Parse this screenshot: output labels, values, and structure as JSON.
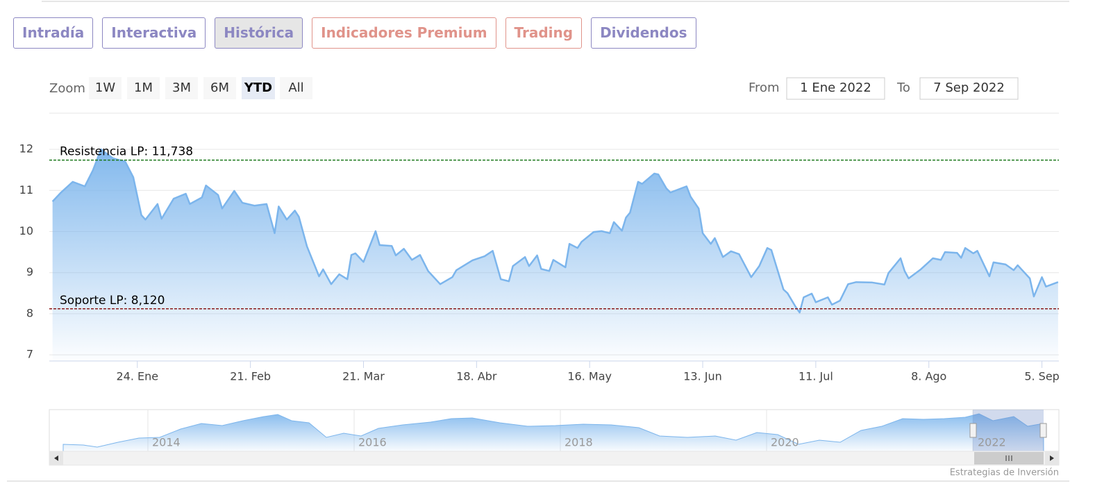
{
  "tabs": [
    "Intradía",
    "Interactiva",
    "Histórica",
    "Indicadores Premium",
    "Trading",
    "Dividendos"
  ],
  "zoom": {
    "label": "Zoom",
    "buttons": [
      "1W",
      "1M",
      "3M",
      "6M",
      "YTD",
      "All"
    ]
  },
  "range": {
    "from_label": "From",
    "from": "1 Ene 2022",
    "to_label": "To",
    "to": "7 Sep 2022"
  },
  "chart_data": {
    "type": "area",
    "color": "#7cb5ec",
    "x": [
      3,
      5,
      8,
      11,
      13,
      15,
      18,
      21,
      23,
      25,
      26,
      29,
      30,
      33,
      36,
      37,
      40,
      41,
      44,
      45,
      48,
      50,
      53,
      56,
      58,
      59,
      61,
      63,
      64,
      66,
      69,
      70,
      72,
      74,
      76,
      77,
      78,
      80,
      83,
      84,
      87,
      88,
      90,
      92,
      94,
      96,
      99,
      102,
      103,
      107,
      110,
      112,
      114,
      116,
      117,
      120,
      121,
      123,
      124,
      126,
      127,
      130,
      131,
      133,
      134,
      137,
      139,
      141,
      142,
      144,
      145,
      146,
      148,
      149,
      152,
      153,
      155,
      156,
      160,
      161,
      163,
      164,
      166,
      167,
      169,
      171,
      173,
      176,
      178,
      180,
      181,
      184,
      185,
      187,
      188,
      189,
      191,
      192,
      195,
      196,
      198,
      200,
      202,
      206,
      209,
      210,
      213,
      214,
      215,
      218,
      221,
      223,
      224,
      227,
      228,
      229,
      231,
      232,
      235,
      236,
      239,
      241,
      242,
      245,
      246,
      248,
      249,
      252
    ],
    "values": [
      10.73,
      10.94,
      11.21,
      11.1,
      11.49,
      12.0,
      11.78,
      11.7,
      11.32,
      10.4,
      10.29,
      10.67,
      10.31,
      10.8,
      10.92,
      10.67,
      10.83,
      11.12,
      10.89,
      10.56,
      10.99,
      10.7,
      10.63,
      10.67,
      9.96,
      10.61,
      10.29,
      10.51,
      10.36,
      9.64,
      8.91,
      9.08,
      8.72,
      8.96,
      8.84,
      9.43,
      9.47,
      9.26,
      10.01,
      9.67,
      9.65,
      9.42,
      9.58,
      9.31,
      9.43,
      9.04,
      8.72,
      8.89,
      9.06,
      9.3,
      9.4,
      9.53,
      8.84,
      8.79,
      9.16,
      9.38,
      9.16,
      9.42,
      9.09,
      9.04,
      9.31,
      9.13,
      9.7,
      9.6,
      9.75,
      9.99,
      10.01,
      9.96,
      10.23,
      10.02,
      10.34,
      10.46,
      11.21,
      11.16,
      11.41,
      11.39,
      11.05,
      10.95,
      11.1,
      10.85,
      10.56,
      9.96,
      9.7,
      9.84,
      9.38,
      9.52,
      9.45,
      8.89,
      9.16,
      9.6,
      9.55,
      8.59,
      8.5,
      8.17,
      8.03,
      8.4,
      8.49,
      8.28,
      8.4,
      8.22,
      8.32,
      8.72,
      8.77,
      8.76,
      8.71,
      8.99,
      9.35,
      9.04,
      8.86,
      9.08,
      9.35,
      9.31,
      9.5,
      9.48,
      9.36,
      9.6,
      9.47,
      9.53,
      8.91,
      9.25,
      9.2,
      9.06,
      9.18,
      8.86,
      8.42,
      8.89,
      8.66,
      8.77
    ],
    "xlim": [
      2.2,
      252.2
    ],
    "xticks": [
      {
        "value": 24,
        "label": "24. Ene"
      },
      {
        "value": 52,
        "label": "21. Feb"
      },
      {
        "value": 80,
        "label": "21. Mar"
      },
      {
        "value": 108,
        "label": "18. Abr"
      },
      {
        "value": 136,
        "label": "16. May"
      },
      {
        "value": 164,
        "label": "13. Jun"
      },
      {
        "value": 192,
        "label": "11. Jul"
      },
      {
        "value": 220,
        "label": "8. Ago"
      },
      {
        "value": 248,
        "label": "5. Sep"
      }
    ],
    "ylim": [
      6.85,
      12.88
    ],
    "yticks": [
      7,
      8,
      9,
      10,
      11,
      12
    ],
    "grid": true,
    "annotations": [
      {
        "label": "Resistencia LP: 11,738",
        "value": 11.738,
        "color": "#1e7a1e"
      },
      {
        "label": "Soporte LP: 8,120",
        "value": 8.12,
        "color": "#8b1a1a"
      }
    ]
  },
  "navigator": {
    "labels": [
      "2014",
      "2016",
      "2018",
      "2020",
      "2022"
    ]
  },
  "credits": "Estrategias de Inversión"
}
